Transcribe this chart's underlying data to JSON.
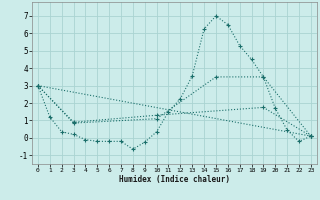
{
  "xlabel": "Humidex (Indice chaleur)",
  "background_color": "#ccecea",
  "grid_color": "#aad4d2",
  "line_color": "#1a6e6a",
  "xlim": [
    -0.5,
    23.5
  ],
  "ylim": [
    -1.5,
    7.8
  ],
  "yticks": [
    -1,
    0,
    1,
    2,
    3,
    4,
    5,
    6,
    7
  ],
  "xticks": [
    0,
    1,
    2,
    3,
    4,
    5,
    6,
    7,
    8,
    9,
    10,
    11,
    12,
    13,
    14,
    15,
    16,
    17,
    18,
    19,
    20,
    21,
    22,
    23
  ],
  "line1_x": [
    0,
    1,
    2,
    3,
    4,
    5,
    6,
    7,
    8,
    9,
    10,
    11,
    12,
    13,
    14,
    15,
    16,
    17,
    18,
    19,
    20,
    21,
    22,
    23
  ],
  "line1_y": [
    3.0,
    1.2,
    0.35,
    0.2,
    -0.1,
    -0.2,
    -0.2,
    -0.2,
    -0.65,
    -0.25,
    0.35,
    1.5,
    2.25,
    3.55,
    6.25,
    7.0,
    6.5,
    5.3,
    4.5,
    3.5,
    1.7,
    0.45,
    -0.2,
    0.1
  ],
  "line2_x": [
    0,
    3,
    10,
    15,
    19,
    23
  ],
  "line2_y": [
    3.0,
    0.85,
    1.1,
    3.5,
    3.5,
    0.1
  ],
  "line3_x": [
    0,
    3,
    10,
    19,
    23
  ],
  "line3_y": [
    3.0,
    0.9,
    1.3,
    1.75,
    0.1
  ],
  "line4_x": [
    0,
    23
  ],
  "line4_y": [
    3.0,
    0.1
  ]
}
